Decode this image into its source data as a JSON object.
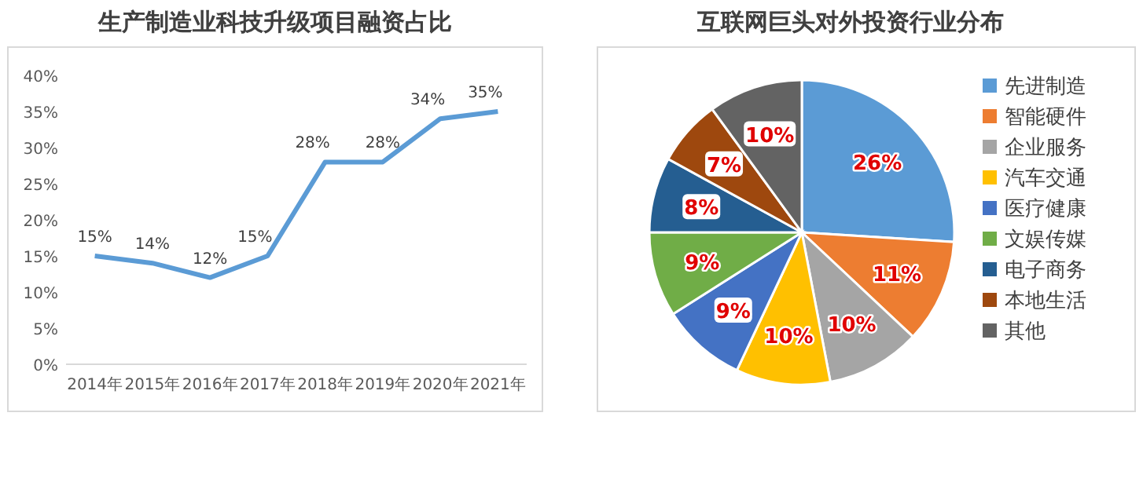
{
  "chart_data": [
    {
      "type": "line",
      "title": "生产制造业科技升级项目融资占比",
      "categories": [
        "2014年",
        "2015年",
        "2016年",
        "2017年",
        "2018年",
        "2019年",
        "2020年",
        "2021年"
      ],
      "series": [
        {
          "color": "#5b9bd5",
          "values": [
            15,
            14,
            12,
            15,
            28,
            28,
            34,
            35
          ],
          "value_labels": [
            "15%",
            "14%",
            "12%",
            "15%",
            "28%",
            "28%",
            "34%",
            "35%"
          ]
        }
      ],
      "ylim": [
        0,
        40
      ],
      "yticks": [
        {
          "value": 0,
          "label": "0%"
        },
        {
          "value": 5,
          "label": "5%"
        },
        {
          "value": 10,
          "label": "10%"
        },
        {
          "value": 15,
          "label": "15%"
        },
        {
          "value": 20,
          "label": "20%"
        },
        {
          "value": 25,
          "label": "25%"
        },
        {
          "value": 30,
          "label": "30%"
        },
        {
          "value": 35,
          "label": "35%"
        },
        {
          "value": 40,
          "label": "40%"
        }
      ],
      "grid": false,
      "marker": "none",
      "line_style": "solid"
    },
    {
      "type": "pie",
      "title": "互联网巨头对外投资行业分布",
      "categories": [
        "先进制造",
        "智能硬件",
        "企业服务",
        "汽车交通",
        "医疗健康",
        "文娱传媒",
        "电子商务",
        "本地生活",
        "其他"
      ],
      "values": [
        26,
        11,
        10,
        10,
        9,
        9,
        8,
        7,
        10
      ],
      "colors": [
        "#5b9bd5",
        "#ed7d31",
        "#a5a5a5",
        "#ffc000",
        "#4472c4",
        "#70ad47",
        "#255e91",
        "#9e480e",
        "#636363"
      ],
      "value_labels": [
        "26%",
        "11%",
        "10%",
        "10%",
        "9%",
        "9%",
        "8%",
        "7%",
        "10%"
      ],
      "legend": "right"
    }
  ]
}
